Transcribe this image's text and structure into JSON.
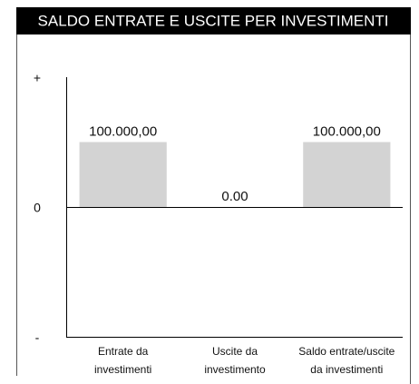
{
  "chart_data": {
    "type": "bar",
    "title": "SALDO ENTRATE E USCITE PER INVESTIMENTI",
    "categories": [
      [
        "Entrate da",
        "investimenti"
      ],
      [
        "Uscite da",
        "investimento"
      ],
      [
        "Saldo entrate/uscite",
        "da investimenti"
      ]
    ],
    "values": [
      100000,
      0,
      100000
    ],
    "value_labels": [
      "100.000,00",
      "0.00",
      "100.000,00"
    ],
    "color": "#d3d3d3",
    "ylim": [
      -200000,
      200000
    ],
    "yticks": [
      {
        "value": 200000,
        "label": "+"
      },
      {
        "value": 0,
        "label": "0"
      },
      {
        "value": -200000,
        "label": "-"
      }
    ]
  }
}
